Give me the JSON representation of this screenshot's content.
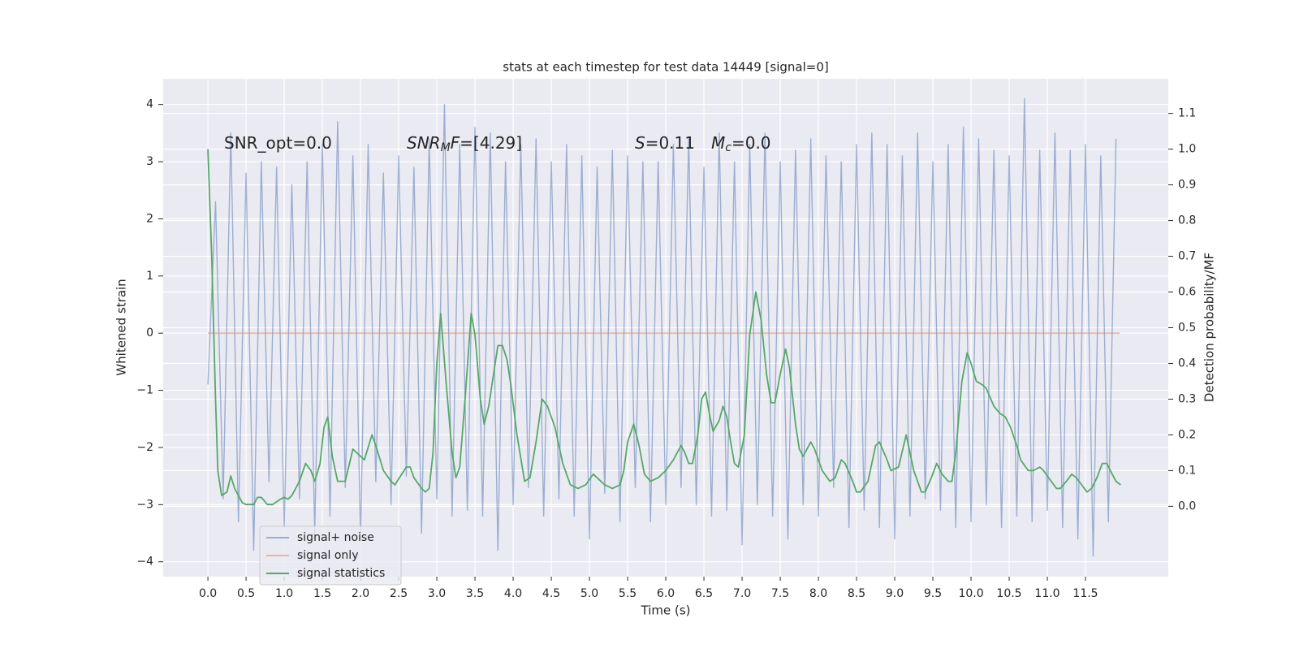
{
  "chart_data": {
    "type": "line",
    "title": "stats at each timestep for test data 14449 [signal=0]",
    "xlabel": "Time (s)",
    "ylabel": "Whitened strain",
    "y2label": "Detection probability/MF",
    "xlim": [
      -0.586,
      12.585
    ],
    "ylim": [
      -4.26,
      4.45
    ],
    "y2lim": [
      -0.197,
      1.197
    ],
    "grid": true,
    "background": "#eaeaf2",
    "legend": "lower left",
    "xticks": [
      {
        "value": 0,
        "label": "0.0"
      },
      {
        "value": 0.5,
        "label": "0.5"
      },
      {
        "value": 1,
        "label": "1.0"
      },
      {
        "value": 1.5,
        "label": "1.5"
      },
      {
        "value": 2,
        "label": "2.0"
      },
      {
        "value": 2.5,
        "label": "2.5"
      },
      {
        "value": 3,
        "label": "3.0"
      },
      {
        "value": 3.5,
        "label": "3.5"
      },
      {
        "value": 4,
        "label": "4.0"
      },
      {
        "value": 4.5,
        "label": "4.5"
      },
      {
        "value": 5,
        "label": "5.0"
      },
      {
        "value": 5.5,
        "label": "5.5"
      },
      {
        "value": 6,
        "label": "6.0"
      },
      {
        "value": 6.5,
        "label": "6.5"
      },
      {
        "value": 7,
        "label": "7.0"
      },
      {
        "value": 7.5,
        "label": "7.5"
      },
      {
        "value": 8,
        "label": "8.0"
      },
      {
        "value": 8.5,
        "label": "8.5"
      },
      {
        "value": 9,
        "label": "9.0"
      },
      {
        "value": 9.5,
        "label": "9.5"
      },
      {
        "value": 10,
        "label": "10.0"
      },
      {
        "value": 10.5,
        "label": "10.5"
      },
      {
        "value": 11,
        "label": "11.0"
      },
      {
        "value": 11.5,
        "label": "11.5"
      }
    ],
    "yticks": [
      {
        "value": -4,
        "label": "−4"
      },
      {
        "value": -3,
        "label": "−3"
      },
      {
        "value": -2,
        "label": "−2"
      },
      {
        "value": -1,
        "label": "−1"
      },
      0,
      1,
      2,
      3,
      4
    ],
    "y2ticks": [
      {
        "value": 0,
        "label": "0.0"
      },
      {
        "value": 0.1,
        "label": "0.1"
      },
      {
        "value": 0.2,
        "label": "0.2"
      },
      {
        "value": 0.3,
        "label": "0.3"
      },
      {
        "value": 0.4,
        "label": "0.4"
      },
      {
        "value": 0.5,
        "label": "0.5"
      },
      {
        "value": 0.6,
        "label": "0.6"
      },
      {
        "value": 0.7,
        "label": "0.7"
      },
      {
        "value": 0.8,
        "label": "0.8"
      },
      {
        "value": 0.9,
        "label": "0.9"
      },
      {
        "value": 1,
        "label": "1.0"
      },
      {
        "value": 1.1,
        "label": "1.1"
      }
    ],
    "annotations": [
      [
        {
          "text": "SNR_opt=0.0"
        }
      ],
      [
        {
          "text": "SNR",
          "style": "italic"
        },
        {
          "text": "M",
          "style": "sub"
        },
        {
          "text": "F",
          "style": "italic"
        },
        {
          "text": "=[4.29]"
        }
      ],
      [
        {
          "text": "S",
          "style": "italic"
        },
        {
          "text": "=0.11"
        }
      ],
      [
        {
          "text": "M",
          "style": "italic"
        },
        {
          "text": "c",
          "style": "sub"
        },
        {
          "text": "=0.0"
        }
      ]
    ],
    "series": [
      {
        "name": "signal+ noise",
        "color": "#4c72b0",
        "opacity": 0.5,
        "x": [
          0,
          0.1,
          0.2,
          0.3,
          0.4,
          0.5,
          0.6,
          0.7,
          0.8,
          0.9,
          1,
          1.1,
          1.2,
          1.3,
          1.4,
          1.5,
          1.6,
          1.7,
          1.8,
          1.9,
          2,
          2.1,
          2.2,
          2.3,
          2.4,
          2.5,
          2.6,
          2.7,
          2.8,
          2.9,
          3,
          3.1,
          3.2,
          3.3,
          3.4,
          3.5,
          3.6,
          3.7,
          3.8,
          3.9,
          4,
          4.1,
          4.2,
          4.3,
          4.4,
          4.5,
          4.6,
          4.7,
          4.8,
          4.9,
          5,
          5.1,
          5.2,
          5.3,
          5.4,
          5.5,
          5.6,
          5.7,
          5.8,
          5.9,
          6,
          6.1,
          6.2,
          6.3,
          6.4,
          6.5,
          6.6,
          6.7,
          6.8,
          6.9,
          7,
          7.1,
          7.2,
          7.3,
          7.4,
          7.5,
          7.6,
          7.7,
          7.8,
          7.9,
          8,
          8.1,
          8.2,
          8.3,
          8.4,
          8.5,
          8.6,
          8.7,
          8.8,
          8.9,
          9,
          9.1,
          9.2,
          9.3,
          9.4,
          9.5,
          9.6,
          9.7,
          9.8,
          9.9,
          10,
          10.1,
          10.2,
          10.3,
          10.4,
          10.5,
          10.6,
          10.7,
          10.8,
          10.9,
          11,
          11.1,
          11.2,
          11.3,
          11.4,
          11.5,
          11.6,
          11.7,
          11.8,
          11.9
        ],
        "values": [
          -0.9,
          2.3,
          -2.9,
          3.5,
          -3.3,
          2.8,
          -3.8,
          3.0,
          -2.6,
          2.9,
          -3.4,
          2.6,
          -2.9,
          3.0,
          -3.5,
          3.3,
          -3.2,
          3.7,
          -2.7,
          3.1,
          -3.6,
          3.3,
          -2.6,
          2.8,
          -3.0,
          3.1,
          -2.5,
          2.9,
          -3.5,
          3.4,
          -2.9,
          4.0,
          -3.2,
          3.3,
          -3.1,
          3.6,
          -3.2,
          3.5,
          -3.8,
          3.0,
          -3.0,
          3.3,
          -2.7,
          3.4,
          -3.2,
          3.0,
          -2.9,
          3.3,
          -3.2,
          3.1,
          -3.6,
          2.9,
          -2.8,
          3.2,
          -3.3,
          3.1,
          -2.7,
          3.0,
          -3.3,
          3.0,
          -3.0,
          3.3,
          -2.7,
          3.4,
          -3.0,
          2.9,
          -3.2,
          3.5,
          -3.1,
          3.0,
          -3.7,
          3.3,
          -3.0,
          3.5,
          -3.2,
          3.0,
          -3.6,
          3.2,
          -3.0,
          3.4,
          -3.2,
          3.1,
          -2.7,
          3.0,
          -3.4,
          3.3,
          -3.1,
          3.5,
          -3.4,
          3.3,
          -3.6,
          3.1,
          -3.2,
          3.5,
          -2.9,
          3.0,
          -3.1,
          3.3,
          -3.4,
          3.6,
          -3.3,
          3.4,
          -3.0,
          3.2,
          -3.4,
          3.1,
          -3.2,
          4.1,
          -3.3,
          3.2,
          -3.1,
          3.5,
          -3.4,
          3.2,
          -3.6,
          3.3,
          -3.9,
          3.1,
          -3.3,
          3.4
        ]
      },
      {
        "name": "signal only",
        "color": "#dd8452",
        "opacity": 0.5,
        "x": [
          0,
          11.95
        ],
        "values": [
          0,
          0
        ]
      },
      {
        "name": "signal statistics",
        "color": "#55a868",
        "opacity": 1,
        "axis": "y2",
        "x": [
          0,
          0.05,
          0.1,
          0.13,
          0.18,
          0.25,
          0.3,
          0.35,
          0.45,
          0.5,
          0.6,
          0.65,
          0.7,
          0.78,
          0.85,
          0.95,
          1,
          1.05,
          1.1,
          1.2,
          1.28,
          1.35,
          1.4,
          1.47,
          1.52,
          1.57,
          1.63,
          1.7,
          1.8,
          1.9,
          2,
          2.05,
          2.15,
          2.2,
          2.3,
          2.4,
          2.45,
          2.6,
          2.65,
          2.7,
          2.8,
          2.85,
          2.9,
          2.95,
          3,
          3.05,
          3.12,
          3.2,
          3.25,
          3.3,
          3.37,
          3.45,
          3.5,
          3.57,
          3.62,
          3.68,
          3.75,
          3.8,
          3.86,
          3.92,
          3.97,
          4.05,
          4.15,
          4.22,
          4.3,
          4.38,
          4.45,
          4.55,
          4.65,
          4.75,
          4.85,
          4.95,
          5.05,
          5.1,
          5.2,
          5.3,
          5.4,
          5.45,
          5.5,
          5.58,
          5.65,
          5.72,
          5.8,
          5.9,
          6,
          6.1,
          6.2,
          6.25,
          6.3,
          6.35,
          6.42,
          6.47,
          6.52,
          6.58,
          6.62,
          6.7,
          6.75,
          6.8,
          6.85,
          6.9,
          6.95,
          7.03,
          7.1,
          7.18,
          7.25,
          7.32,
          7.38,
          7.43,
          7.5,
          7.57,
          7.62,
          7.7,
          7.75,
          7.8,
          7.9,
          7.95,
          8.05,
          8.15,
          8.22,
          8.3,
          8.35,
          8.45,
          8.5,
          8.55,
          8.65,
          8.75,
          8.8,
          8.9,
          8.95,
          9.05,
          9.15,
          9.25,
          9.35,
          9.4,
          9.48,
          9.55,
          9.62,
          9.7,
          9.75,
          9.8,
          9.88,
          9.95,
          10,
          10.07,
          10.15,
          10.2,
          10.3,
          10.38,
          10.45,
          10.52,
          10.6,
          10.65,
          10.75,
          10.82,
          10.9,
          10.95,
          11.05,
          11.12,
          11.17,
          11.25,
          11.32,
          11.38,
          11.45,
          11.52,
          11.58,
          11.65,
          11.72,
          11.78,
          11.85,
          11.9,
          11.96
        ],
        "values": [
          1.0,
          0.7,
          0.3,
          0.1,
          0.03,
          0.04,
          0.085,
          0.05,
          0.01,
          0.005,
          0.005,
          0.025,
          0.025,
          0.005,
          0.005,
          0.02,
          0.025,
          0.02,
          0.03,
          0.07,
          0.12,
          0.1,
          0.07,
          0.12,
          0.22,
          0.25,
          0.14,
          0.07,
          0.07,
          0.16,
          0.14,
          0.13,
          0.2,
          0.17,
          0.1,
          0.07,
          0.06,
          0.11,
          0.11,
          0.08,
          0.05,
          0.04,
          0.05,
          0.15,
          0.4,
          0.54,
          0.35,
          0.15,
          0.08,
          0.11,
          0.3,
          0.54,
          0.48,
          0.3,
          0.23,
          0.28,
          0.38,
          0.45,
          0.45,
          0.41,
          0.34,
          0.2,
          0.07,
          0.08,
          0.18,
          0.3,
          0.28,
          0.22,
          0.12,
          0.06,
          0.05,
          0.06,
          0.09,
          0.08,
          0.06,
          0.05,
          0.06,
          0.1,
          0.18,
          0.23,
          0.17,
          0.09,
          0.07,
          0.08,
          0.1,
          0.13,
          0.17,
          0.15,
          0.12,
          0.12,
          0.2,
          0.3,
          0.32,
          0.25,
          0.21,
          0.24,
          0.28,
          0.25,
          0.18,
          0.12,
          0.11,
          0.2,
          0.48,
          0.6,
          0.52,
          0.37,
          0.29,
          0.29,
          0.37,
          0.44,
          0.39,
          0.23,
          0.16,
          0.14,
          0.18,
          0.16,
          0.1,
          0.07,
          0.08,
          0.13,
          0.12,
          0.07,
          0.04,
          0.04,
          0.07,
          0.17,
          0.18,
          0.13,
          0.1,
          0.11,
          0.2,
          0.1,
          0.04,
          0.04,
          0.08,
          0.12,
          0.09,
          0.07,
          0.07,
          0.15,
          0.35,
          0.43,
          0.4,
          0.35,
          0.34,
          0.33,
          0.28,
          0.26,
          0.25,
          0.22,
          0.17,
          0.13,
          0.1,
          0.1,
          0.11,
          0.1,
          0.07,
          0.05,
          0.05,
          0.07,
          0.09,
          0.08,
          0.06,
          0.04,
          0.05,
          0.08,
          0.12,
          0.12,
          0.09,
          0.07,
          0.06
        ]
      }
    ]
  }
}
